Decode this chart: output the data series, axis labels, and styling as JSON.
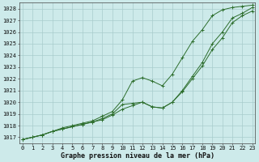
{
  "xlabel": "Graphe pression niveau de la mer (hPa)",
  "hours": [
    0,
    1,
    2,
    3,
    4,
    5,
    6,
    7,
    8,
    9,
    10,
    11,
    12,
    13,
    14,
    15,
    16,
    17,
    18,
    19,
    20,
    21,
    22,
    23
  ],
  "line1": [
    1016.8,
    1017.0,
    1017.2,
    1017.5,
    1017.7,
    1017.9,
    1018.1,
    1018.3,
    1018.5,
    1018.9,
    1019.4,
    1019.7,
    1020.0,
    1019.6,
    1019.5,
    1020.0,
    1020.9,
    1022.0,
    1023.1,
    1024.5,
    1025.5,
    1026.8,
    1027.4,
    1027.8
  ],
  "line2": [
    1016.8,
    1017.0,
    1017.2,
    1017.5,
    1017.7,
    1017.9,
    1018.1,
    1018.3,
    1018.6,
    1019.0,
    1019.8,
    1019.9,
    1020.0,
    1019.6,
    1019.5,
    1020.0,
    1021.0,
    1022.2,
    1023.4,
    1025.0,
    1026.0,
    1027.2,
    1027.6,
    1028.1
  ],
  "line3": [
    1016.8,
    1017.0,
    1017.2,
    1017.5,
    1017.8,
    1018.0,
    1018.2,
    1018.4,
    1018.8,
    1019.2,
    1020.2,
    1021.8,
    1022.1,
    1021.8,
    1021.4,
    1022.4,
    1023.8,
    1025.2,
    1026.2,
    1027.4,
    1027.9,
    1028.1,
    1028.2,
    1028.3
  ],
  "line_color": "#2d6e2d",
  "bg_color": "#cdeaea",
  "grid_color": "#a8cccc",
  "ylim_min": 1016.5,
  "ylim_max": 1028.5,
  "yticks": [
    1017,
    1018,
    1019,
    1020,
    1021,
    1022,
    1023,
    1024,
    1025,
    1026,
    1027,
    1028
  ],
  "xticks": [
    0,
    1,
    2,
    3,
    4,
    5,
    6,
    7,
    8,
    9,
    10,
    11,
    12,
    13,
    14,
    15,
    16,
    17,
    18,
    19,
    20,
    21,
    22,
    23
  ],
  "tick_fontsize": 5.0,
  "label_fontsize": 6.0,
  "figwidth": 3.2,
  "figheight": 2.0,
  "dpi": 100
}
